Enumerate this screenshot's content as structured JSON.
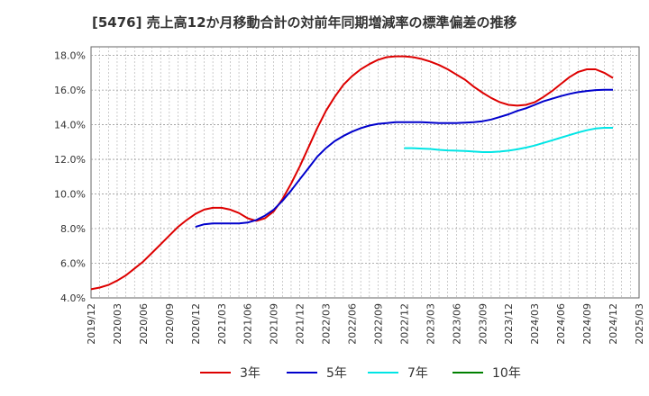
{
  "chart_data": {
    "type": "line",
    "title": "[5476]  売上高12か月移動合計の対前年同期増減率の標準偏差の推移",
    "ylim": [
      4.0,
      18.5
    ],
    "y_ticks": [
      "4.0%",
      "6.0%",
      "8.0%",
      "10.0%",
      "12.0%",
      "14.0%",
      "16.0%",
      "18.0%"
    ],
    "x_ticks": [
      "2019/12",
      "2020/03",
      "2020/06",
      "2020/09",
      "2020/12",
      "2021/03",
      "2021/06",
      "2021/09",
      "2021/12",
      "2022/03",
      "2022/06",
      "2022/09",
      "2022/12",
      "2023/03",
      "2023/06",
      "2023/09",
      "2023/12",
      "2024/03",
      "2024/06",
      "2024/09",
      "2024/12",
      "2025/03"
    ],
    "grid": true,
    "legend_position": "bottom",
    "series": [
      {
        "name": "3年",
        "color": "#dd0000",
        "x": [
          "2019/12",
          "2020/01",
          "2020/02",
          "2020/03",
          "2020/04",
          "2020/05",
          "2020/06",
          "2020/07",
          "2020/08",
          "2020/09",
          "2020/10",
          "2020/11",
          "2020/12",
          "2021/01",
          "2021/02",
          "2021/03",
          "2021/04",
          "2021/05",
          "2021/06",
          "2021/07",
          "2021/08",
          "2021/09",
          "2021/10",
          "2021/11",
          "2021/12",
          "2022/01",
          "2022/02",
          "2022/03",
          "2022/04",
          "2022/05",
          "2022/06",
          "2022/07",
          "2022/08",
          "2022/09",
          "2022/10",
          "2022/11",
          "2022/12",
          "2023/01",
          "2023/02",
          "2023/03",
          "2023/04",
          "2023/05",
          "2023/06",
          "2023/07",
          "2023/08",
          "2023/09",
          "2023/10",
          "2023/11",
          "2023/12",
          "2024/01",
          "2024/02",
          "2024/03",
          "2024/04",
          "2024/05",
          "2024/06",
          "2024/07",
          "2024/08",
          "2024/09",
          "2024/10",
          "2024/11",
          "2024/12"
        ],
        "values": [
          4.5,
          4.6,
          4.75,
          5.0,
          5.3,
          5.7,
          6.1,
          6.6,
          7.1,
          7.6,
          8.1,
          8.5,
          8.85,
          9.1,
          9.2,
          9.2,
          9.1,
          8.9,
          8.6,
          8.45,
          8.6,
          9.0,
          9.7,
          10.6,
          11.6,
          12.7,
          13.8,
          14.8,
          15.6,
          16.3,
          16.8,
          17.2,
          17.5,
          17.75,
          17.9,
          17.95,
          17.95,
          17.9,
          17.8,
          17.65,
          17.45,
          17.2,
          16.9,
          16.6,
          16.2,
          15.85,
          15.55,
          15.3,
          15.15,
          15.1,
          15.15,
          15.3,
          15.6,
          15.95,
          16.35,
          16.75,
          17.05,
          17.2,
          17.2,
          17.0,
          16.7
        ]
      },
      {
        "name": "5年",
        "color": "#0000cc",
        "x": [
          "2020/12",
          "2021/01",
          "2021/02",
          "2021/03",
          "2021/04",
          "2021/05",
          "2021/06",
          "2021/07",
          "2021/08",
          "2021/09",
          "2021/10",
          "2021/11",
          "2021/12",
          "2022/01",
          "2022/02",
          "2022/03",
          "2022/04",
          "2022/05",
          "2022/06",
          "2022/07",
          "2022/08",
          "2022/09",
          "2022/10",
          "2022/11",
          "2022/12",
          "2023/01",
          "2023/02",
          "2023/03",
          "2023/04",
          "2023/05",
          "2023/06",
          "2023/07",
          "2023/08",
          "2023/09",
          "2023/10",
          "2023/11",
          "2023/12",
          "2024/01",
          "2024/02",
          "2024/03",
          "2024/04",
          "2024/05",
          "2024/06",
          "2024/07",
          "2024/08",
          "2024/09",
          "2024/10",
          "2024/11",
          "2024/12"
        ],
        "values": [
          8.1,
          8.25,
          8.3,
          8.3,
          8.3,
          8.3,
          8.35,
          8.5,
          8.75,
          9.1,
          9.6,
          10.2,
          10.85,
          11.5,
          12.15,
          12.65,
          13.05,
          13.35,
          13.6,
          13.8,
          13.95,
          14.05,
          14.1,
          14.15,
          14.15,
          14.15,
          14.15,
          14.12,
          14.1,
          14.1,
          14.1,
          14.12,
          14.15,
          14.2,
          14.3,
          14.45,
          14.6,
          14.8,
          14.95,
          15.15,
          15.35,
          15.5,
          15.65,
          15.78,
          15.88,
          15.95,
          16.0,
          16.02,
          16.02
        ]
      },
      {
        "name": "7年",
        "color": "#00e5e5",
        "x": [
          "2022/12",
          "2023/01",
          "2023/02",
          "2023/03",
          "2023/04",
          "2023/05",
          "2023/06",
          "2023/07",
          "2023/08",
          "2023/09",
          "2023/10",
          "2023/11",
          "2023/12",
          "2024/01",
          "2024/02",
          "2024/03",
          "2024/04",
          "2024/05",
          "2024/06",
          "2024/07",
          "2024/08",
          "2024/09",
          "2024/10",
          "2024/11",
          "2024/12"
        ],
        "values": [
          12.65,
          12.65,
          12.62,
          12.6,
          12.55,
          12.52,
          12.5,
          12.48,
          12.45,
          12.42,
          12.42,
          12.45,
          12.5,
          12.58,
          12.68,
          12.8,
          12.95,
          13.1,
          13.25,
          13.4,
          13.55,
          13.68,
          13.78,
          13.82,
          13.82
        ]
      },
      {
        "name": "10年",
        "color": "#008000",
        "x": [],
        "values": []
      }
    ]
  }
}
